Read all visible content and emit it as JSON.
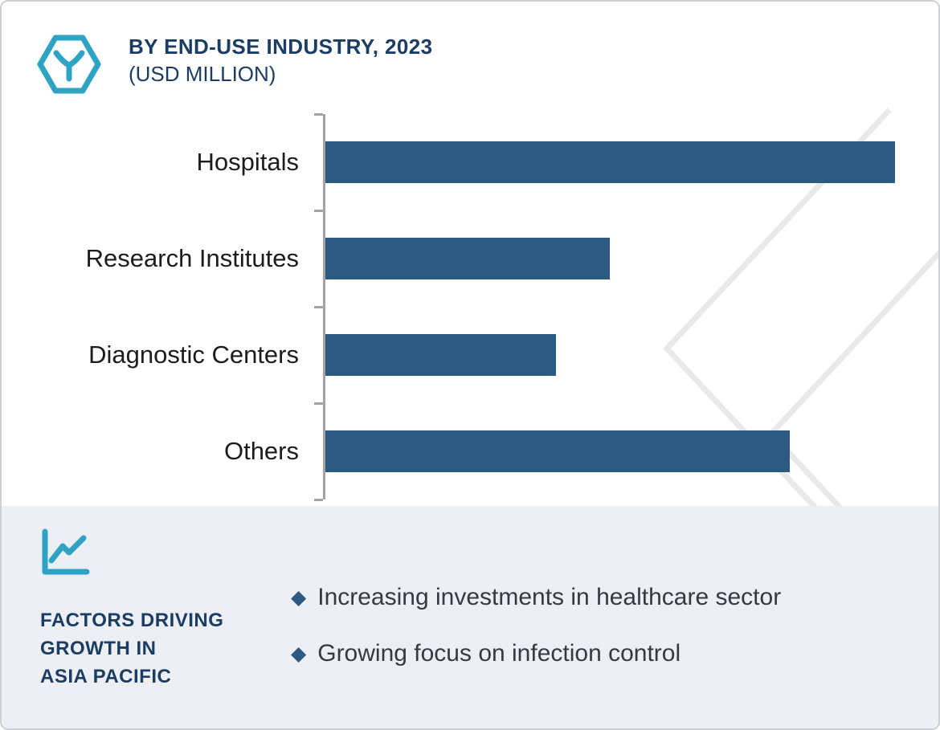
{
  "chart_data": {
    "type": "bar",
    "orientation": "horizontal",
    "title": "BY END-USE INDUSTRY, 2023",
    "subtitle": "(USD MILLION)",
    "categories": [
      "Hospitals",
      "Research Institutes",
      "Diagnostic Centers",
      "Others"
    ],
    "values": [
      100,
      50,
      40.5,
      81.5
    ],
    "values_note": "Axis is unlabeled in source; values are relative bar lengths with Hospitals = 100",
    "xlim": [
      0,
      104
    ],
    "xlabel": "",
    "ylabel": "",
    "grid": false,
    "legend": false,
    "bar_color": "#2d5a82"
  },
  "header": {
    "title": "BY END-USE INDUSTRY, 2023",
    "subtitle": "(USD MILLION)",
    "logo_icon": "hexagon-y-logo-icon"
  },
  "footer": {
    "icon": "line-chart-icon",
    "heading": "FACTORS DRIVING\nGROWTH IN\nASIA PACIFIC",
    "bullets": [
      {
        "marker": "◆",
        "text": "Increasing investments in healthcare sector"
      },
      {
        "marker": "◆",
        "text": "Growing focus on infection control"
      }
    ]
  },
  "colors": {
    "bar": "#2d5a82",
    "title_navy": "#1b3c63",
    "accent_teal": "#2fa3c4",
    "footer_background": "#edeff4",
    "body_text": "#333a46",
    "axis_gray": "#a3a3a3",
    "watermark_gray": "#e9e9e9"
  }
}
